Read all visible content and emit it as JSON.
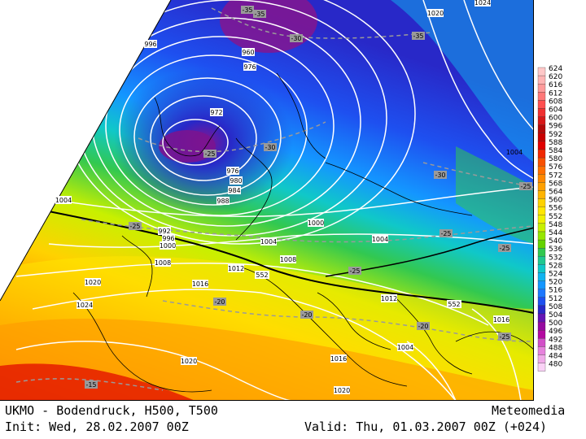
{
  "footer": {
    "title": "UKMO - Bodendruck, H500, T500",
    "brand": "Meteomedia",
    "init": "Init: Wed, 28.02.2007 00Z",
    "valid": "Valid: Thu, 01.03.2007 00Z (+024)"
  },
  "legend": {
    "values": [
      "624",
      "620",
      "616",
      "612",
      "608",
      "604",
      "600",
      "596",
      "592",
      "588",
      "584",
      "580",
      "576",
      "572",
      "568",
      "564",
      "560",
      "556",
      "552",
      "548",
      "544",
      "540",
      "536",
      "532",
      "528",
      "524",
      "520",
      "516",
      "512",
      "508",
      "504",
      "500",
      "496",
      "492",
      "488",
      "484",
      "480"
    ],
    "colors": [
      "#ffc8c8",
      "#ffb4b4",
      "#ff9a9a",
      "#ff7878",
      "#ff5050",
      "#f03030",
      "#d81818",
      "#b40a0a",
      "#c80000",
      "#e00000",
      "#f02800",
      "#f85000",
      "#ff6e00",
      "#ff8800",
      "#ffa000",
      "#ffb400",
      "#ffd200",
      "#ffe600",
      "#f0f000",
      "#c8f000",
      "#96e600",
      "#64d200",
      "#32c850",
      "#20c890",
      "#10c8c8",
      "#10b4f0",
      "#1496ff",
      "#1e78ff",
      "#1e50f0",
      "#2828c8",
      "#6414b4",
      "#960aa0",
      "#b40aa0",
      "#d250c8",
      "#e682dc",
      "#f0aae8",
      "#fad2f6"
    ]
  },
  "map": {
    "pressure_labels": [
      "996",
      "960",
      "976",
      "972",
      "976",
      "980",
      "984",
      "988",
      "992",
      "996",
      "1000",
      "1004",
      "1008",
      "1012",
      "1016",
      "1020",
      "1024",
      "1004",
      "1004",
      "1000",
      "1004",
      "1008",
      "1012",
      "1016",
      "1016",
      "1020",
      "1020",
      "1020",
      "1024"
    ],
    "height_labels": [
      "552",
      "552"
    ],
    "temp_labels": [
      "-35",
      "-35",
      "-30",
      "-35",
      "-30",
      "-25",
      "-30",
      "-25",
      "-25",
      "-25",
      "-25",
      "-20",
      "-20",
      "-25",
      "-20",
      "-15",
      "-25"
    ]
  }
}
